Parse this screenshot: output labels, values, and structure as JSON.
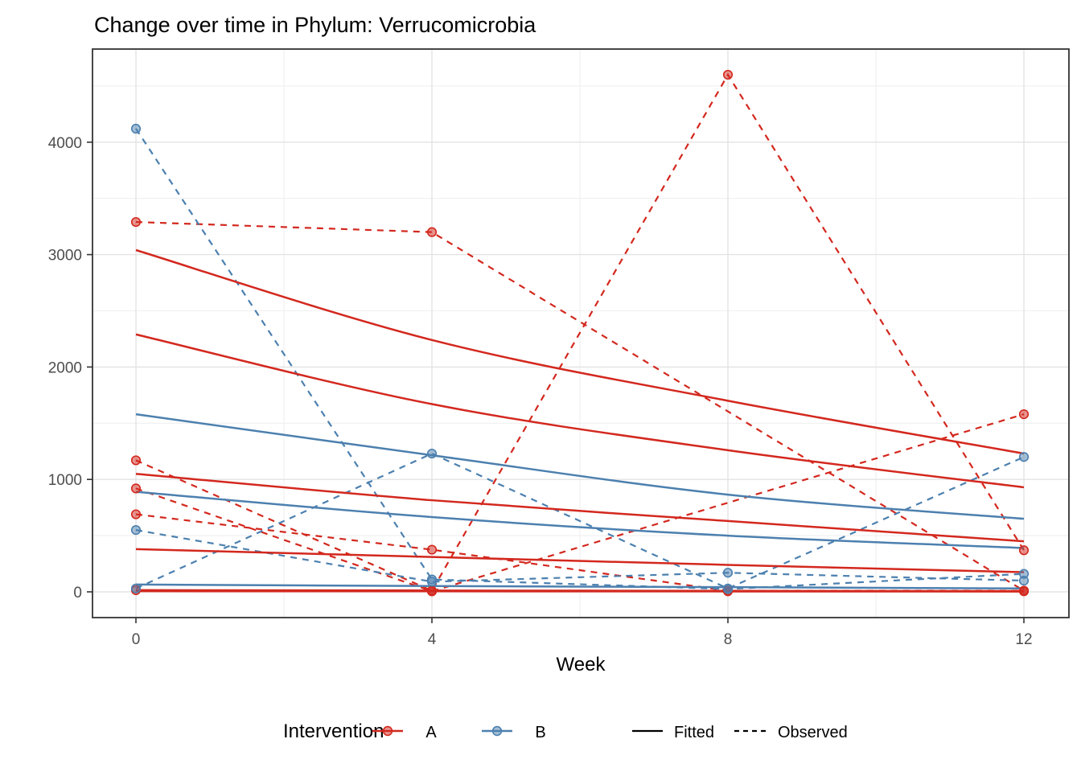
{
  "title": "Change over time in Phylum: Verrucomicrobia",
  "x_axis": {
    "label": "Week",
    "ticks": [
      0,
      4,
      8,
      12
    ]
  },
  "y_axis": {
    "label": "",
    "ticks": [
      0,
      1000,
      2000,
      3000,
      4000
    ]
  },
  "legend": {
    "title": "Intervention",
    "groups": [
      {
        "label": "A",
        "color": "#D3281E"
      },
      {
        "label": "B",
        "color": "#4C80AF"
      }
    ],
    "linetypes": [
      {
        "label": "Fitted",
        "style": "solid"
      },
      {
        "label": "Observed",
        "style": "dashed"
      }
    ]
  },
  "colors": {
    "group_a": "#D3281E",
    "group_b": "#4C80AF",
    "grid_major": "#e3e3e3",
    "grid_minor": "#efefef",
    "panel_border": "#333333",
    "axis_text": "#4d4d4d",
    "key_line": "#000000"
  },
  "chart_data": {
    "type": "line",
    "title": "Change over time in Phylum: Verrucomicrobia",
    "xlabel": "Week",
    "ylabel": "",
    "x_ticks": [
      0,
      4,
      8,
      12
    ],
    "y_ticks": [
      0,
      1000,
      2000,
      3000,
      4000
    ],
    "x_minor": [
      2,
      6,
      10
    ],
    "y_minor": [
      500,
      1500,
      2500,
      3500,
      4500
    ],
    "xlim": [
      -0.6,
      12.6
    ],
    "ylim": [
      -230,
      4830
    ],
    "grid": true,
    "legend_position": "bottom",
    "series": [
      {
        "group": "A",
        "kind": "fitted",
        "weeks": [
          0,
          4,
          8,
          12
        ],
        "values": [
          3040,
          2240,
          1700,
          1230
        ]
      },
      {
        "group": "A",
        "kind": "fitted",
        "weeks": [
          0,
          4,
          8,
          12
        ],
        "values": [
          2290,
          1670,
          1260,
          930
        ]
      },
      {
        "group": "A",
        "kind": "fitted",
        "weeks": [
          0,
          4,
          8,
          12
        ],
        "values": [
          1050,
          815,
          630,
          450
        ]
      },
      {
        "group": "A",
        "kind": "fitted",
        "weeks": [
          0,
          4,
          8,
          12
        ],
        "values": [
          380,
          310,
          240,
          175
        ]
      },
      {
        "group": "A",
        "kind": "fitted",
        "weeks": [
          0,
          4,
          8,
          12
        ],
        "values": [
          15,
          12,
          9,
          7
        ]
      },
      {
        "group": "A",
        "kind": "fitted",
        "weeks": [
          0,
          4,
          8,
          12
        ],
        "values": [
          6,
          5,
          4,
          3
        ]
      },
      {
        "group": "B",
        "kind": "fitted",
        "weeks": [
          0,
          4,
          8,
          12
        ],
        "values": [
          1580,
          1215,
          865,
          650
        ]
      },
      {
        "group": "B",
        "kind": "fitted",
        "weeks": [
          0,
          4,
          8,
          12
        ],
        "values": [
          890,
          665,
          500,
          390
        ]
      },
      {
        "group": "B",
        "kind": "fitted",
        "weeks": [
          0,
          4,
          8,
          12
        ],
        "values": [
          65,
          52,
          42,
          30
        ]
      },
      {
        "group": "A",
        "kind": "observed",
        "weeks": [
          0,
          4,
          12
        ],
        "values": [
          3290,
          3200,
          10
        ]
      },
      {
        "group": "A",
        "kind": "observed",
        "weeks": [
          0,
          4,
          8,
          12
        ],
        "values": [
          1170,
          10,
          4600,
          370
        ]
      },
      {
        "group": "A",
        "kind": "observed",
        "weeks": [
          0,
          4,
          12
        ],
        "values": [
          920,
          5,
          1580
        ]
      },
      {
        "group": "A",
        "kind": "observed",
        "weeks": [
          0,
          4,
          8,
          12
        ],
        "values": [
          690,
          375,
          10,
          10
        ]
      },
      {
        "group": "A",
        "kind": "observed",
        "weeks": [
          0,
          4,
          8,
          12
        ],
        "values": [
          15,
          5,
          5,
          5
        ]
      },
      {
        "group": "B",
        "kind": "observed",
        "weeks": [
          0,
          4,
          8,
          12
        ],
        "values": [
          4120,
          110,
          25,
          160
        ]
      },
      {
        "group": "B",
        "kind": "observed",
        "weeks": [
          0,
          4,
          8,
          12
        ],
        "values": [
          550,
          90,
          170,
          100
        ]
      },
      {
        "group": "B",
        "kind": "observed",
        "weeks": [
          0,
          4,
          8,
          12
        ],
        "values": [
          30,
          1230,
          30,
          1200
        ]
      }
    ]
  }
}
